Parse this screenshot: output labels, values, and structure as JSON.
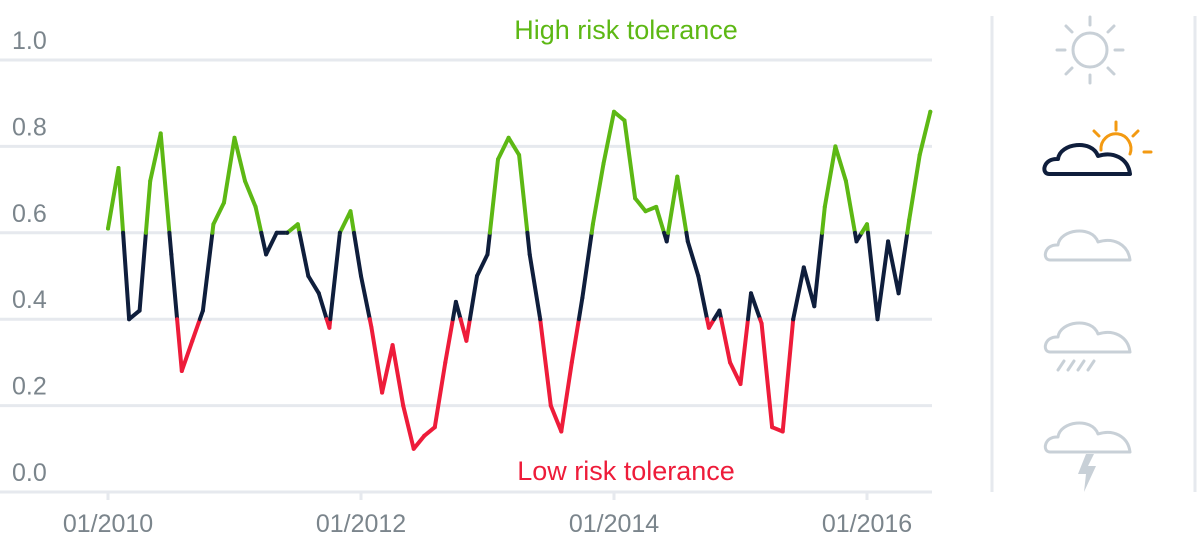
{
  "chart_data": {
    "type": "line",
    "title": "",
    "xlabel": "",
    "ylabel": "",
    "ylim": [
      0.0,
      1.0
    ],
    "xlim": [
      "2010-01",
      "2016-07"
    ],
    "y_ticks": [
      "0.0",
      "0.2",
      "0.4",
      "0.6",
      "0.8",
      "1.0"
    ],
    "x_ticks": [
      "01/2010",
      "01/2012",
      "01/2014",
      "01/2016"
    ],
    "grid": "horizontal",
    "annotations": {
      "high": "High risk tolerance",
      "low": "Low risk tolerance"
    },
    "thresholds": {
      "high": 0.6,
      "low": 0.4
    },
    "colors": {
      "high": "#5db814",
      "mid": "#0f1e3c",
      "low": "#ee1c3a",
      "grid": "#e6e9ee",
      "axis_text": "#7b858c",
      "icon_active_cloud": "#0f1e3c",
      "icon_active_sun": "#f39a12",
      "icon_inactive": "#c8d0d7"
    },
    "series": [
      {
        "points": [
          [
            "2010-01",
            0.61
          ],
          [
            "2010-02",
            0.75
          ],
          [
            "2010-03",
            0.4
          ],
          [
            "2010-04",
            0.42
          ],
          [
            "2010-05",
            0.72
          ],
          [
            "2010-06",
            0.83
          ],
          [
            "2010-07",
            0.55
          ],
          [
            "2010-08",
            0.28
          ],
          [
            "2010-09",
            0.35
          ],
          [
            "2010-10",
            0.42
          ],
          [
            "2010-11",
            0.62
          ],
          [
            "2010-12",
            0.67
          ],
          [
            "2011-01",
            0.82
          ],
          [
            "2011-02",
            0.72
          ],
          [
            "2011-03",
            0.66
          ],
          [
            "2011-04",
            0.55
          ],
          [
            "2011-05",
            0.6
          ],
          [
            "2011-06",
            0.6
          ],
          [
            "2011-07",
            0.62
          ],
          [
            "2011-08",
            0.5
          ],
          [
            "2011-09",
            0.46
          ],
          [
            "2011-10",
            0.38
          ],
          [
            "2011-11",
            0.6
          ],
          [
            "2011-12",
            0.65
          ],
          [
            "2012-01",
            0.5
          ],
          [
            "2012-02",
            0.38
          ],
          [
            "2012-03",
            0.23
          ],
          [
            "2012-04",
            0.34
          ],
          [
            "2012-05",
            0.2
          ],
          [
            "2012-06",
            0.1
          ],
          [
            "2012-07",
            0.13
          ],
          [
            "2012-08",
            0.15
          ],
          [
            "2012-09",
            0.3
          ],
          [
            "2012-10",
            0.44
          ],
          [
            "2012-11",
            0.35
          ],
          [
            "2012-12",
            0.5
          ],
          [
            "2013-01",
            0.55
          ],
          [
            "2013-02",
            0.77
          ],
          [
            "2013-03",
            0.82
          ],
          [
            "2013-04",
            0.78
          ],
          [
            "2013-05",
            0.55
          ],
          [
            "2013-06",
            0.4
          ],
          [
            "2013-07",
            0.2
          ],
          [
            "2013-08",
            0.14
          ],
          [
            "2013-09",
            0.3
          ],
          [
            "2013-10",
            0.45
          ],
          [
            "2013-11",
            0.62
          ],
          [
            "2013-12",
            0.76
          ],
          [
            "2014-01",
            0.88
          ],
          [
            "2014-02",
            0.86
          ],
          [
            "2014-03",
            0.68
          ],
          [
            "2014-04",
            0.65
          ],
          [
            "2014-05",
            0.66
          ],
          [
            "2014-06",
            0.58
          ],
          [
            "2014-07",
            0.73
          ],
          [
            "2014-08",
            0.58
          ],
          [
            "2014-09",
            0.5
          ],
          [
            "2014-10",
            0.38
          ],
          [
            "2014-11",
            0.42
          ],
          [
            "2014-12",
            0.3
          ],
          [
            "2015-01",
            0.25
          ],
          [
            "2015-02",
            0.46
          ],
          [
            "2015-03",
            0.39
          ],
          [
            "2015-04",
            0.15
          ],
          [
            "2015-05",
            0.14
          ],
          [
            "2015-06",
            0.4
          ],
          [
            "2015-07",
            0.52
          ],
          [
            "2015-08",
            0.43
          ],
          [
            "2015-09",
            0.66
          ],
          [
            "2015-10",
            0.8
          ],
          [
            "2015-11",
            0.72
          ],
          [
            "2015-12",
            0.58
          ],
          [
            "2016-01",
            0.62
          ],
          [
            "2016-02",
            0.4
          ],
          [
            "2016-03",
            0.58
          ],
          [
            "2016-04",
            0.46
          ],
          [
            "2016-05",
            0.63
          ],
          [
            "2016-06",
            0.78
          ],
          [
            "2016-07",
            0.88
          ]
        ]
      }
    ]
  },
  "legend_icons": {
    "items": [
      {
        "name": "sun-icon",
        "active": false
      },
      {
        "name": "sun-cloud-icon",
        "active": true
      },
      {
        "name": "cloud-icon",
        "active": false
      },
      {
        "name": "rain-cloud-icon",
        "active": false
      },
      {
        "name": "storm-cloud-icon",
        "active": false
      }
    ]
  }
}
